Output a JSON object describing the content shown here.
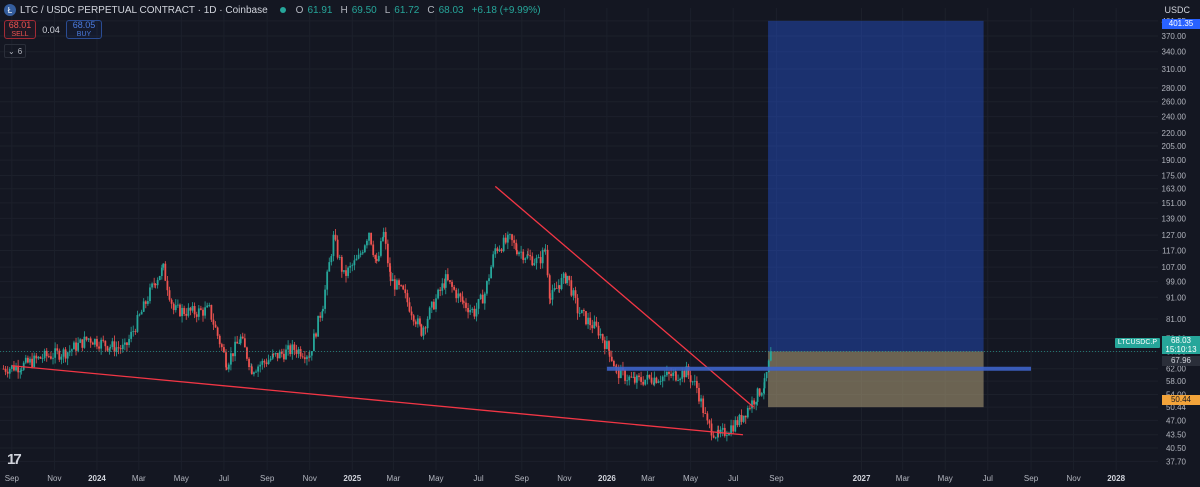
{
  "header": {
    "symbol_icon": "litecoin-icon",
    "title": "LTC / USDC PERPETUAL CONTRACT · 1D · Coinbase",
    "open_label": "O",
    "open": "61.91",
    "high_label": "H",
    "high": "69.50",
    "low_label": "L",
    "low": "61.72",
    "close_label": "C",
    "close": "68.03",
    "change": "+6.18 (+9.99%)"
  },
  "trade": {
    "sell_price": "68.01",
    "sell_label": "SELL",
    "spread": "0.04",
    "buy_price": "68.05",
    "buy_label": "BUY"
  },
  "indicators": {
    "toggle_icon": "chevron-down-icon",
    "count": "6"
  },
  "axis": {
    "currency": "USDC"
  },
  "price_tags": {
    "symbol_label": "LTCUSDC.P",
    "last_price": "68.03",
    "countdown": "15:10:13",
    "price_2": "67.96",
    "target": "401.35",
    "stop": "50.44"
  },
  "colors": {
    "background": "#141722",
    "up": "#26a69a",
    "down": "#ef5350",
    "trendline": "#f23645",
    "level": "#3d63c9",
    "target_zone": "#2962ff",
    "stop_zone": "#b3a27a"
  },
  "chart_data": {
    "type": "candlestick",
    "title": "LTC / USDC PERPETUAL CONTRACT · 1D · Coinbase",
    "y_scale": "log",
    "ylim": [
      36,
      430
    ],
    "y_ticks": [
      "37.70",
      "40.50",
      "43.50",
      "47.00",
      "50.44",
      "54.00",
      "58.00",
      "62.00",
      "67.96",
      "73.00",
      "81.00",
      "91.00",
      "99.00",
      "107.00",
      "117.00",
      "127.00",
      "139.00",
      "151.00",
      "163.00",
      "175.00",
      "190.00",
      "205.00",
      "220.00",
      "240.00",
      "260.00",
      "280.00",
      "310.00",
      "340.00",
      "370.00",
      "401.35"
    ],
    "x_ticks": [
      "Sep",
      "Nov",
      "2024",
      "Mar",
      "May",
      "Jul",
      "Sep",
      "Nov",
      "2025",
      "Mar",
      "May",
      "Jul",
      "Sep",
      "Nov",
      "2026",
      "Mar",
      "May",
      "Jul",
      "Sep",
      "2027",
      "Mar",
      "May",
      "Jul",
      "Sep",
      "Nov",
      "2028"
    ],
    "x_tick_dates": [
      "2023-09-01",
      "2023-11-01",
      "2024-01-01",
      "2024-03-01",
      "2024-05-01",
      "2024-07-01",
      "2024-09-01",
      "2024-11-01",
      "2025-01-01",
      "2025-03-01",
      "2025-05-01",
      "2025-07-01",
      "2025-09-01",
      "2025-11-01",
      "2026-01-01",
      "2026-03-01",
      "2026-05-01",
      "2026-07-01",
      "2026-09-01",
      "2027-01-01",
      "2027-03-01",
      "2027-05-01",
      "2027-07-01",
      "2027-09-01",
      "2027-11-01",
      "2028-01-01"
    ],
    "xlim": [
      "2023-08-15",
      "2028-03-01"
    ],
    "price_path": [
      [
        "2023-08-20",
        62
      ],
      [
        "2023-09-15",
        63
      ],
      [
        "2023-10-15",
        66
      ],
      [
        "2023-11-20",
        68
      ],
      [
        "2023-12-20",
        73
      ],
      [
        "2024-01-20",
        70
      ],
      [
        "2024-02-10",
        69
      ],
      [
        "2024-03-05",
        84
      ],
      [
        "2024-03-25",
        100
      ],
      [
        "2024-04-05",
        106
      ],
      [
        "2024-04-20",
        85
      ],
      [
        "2024-05-20",
        84
      ],
      [
        "2024-06-10",
        85
      ],
      [
        "2024-07-05",
        64
      ],
      [
        "2024-07-25",
        73
      ],
      [
        "2024-08-10",
        62
      ],
      [
        "2024-09-10",
        66
      ],
      [
        "2024-10-10",
        69
      ],
      [
        "2024-11-01",
        67
      ],
      [
        "2024-11-20",
        88
      ],
      [
        "2024-12-05",
        125
      ],
      [
        "2024-12-20",
        102
      ],
      [
        "2025-01-10",
        112
      ],
      [
        "2025-01-25",
        130
      ],
      [
        "2025-02-05",
        108
      ],
      [
        "2025-02-15",
        128
      ],
      [
        "2025-02-25",
        100
      ],
      [
        "2025-03-15",
        93
      ],
      [
        "2025-04-10",
        76
      ],
      [
        "2025-04-25",
        86
      ],
      [
        "2025-05-15",
        100
      ],
      [
        "2025-06-10",
        88
      ],
      [
        "2025-06-25",
        84
      ],
      [
        "2025-07-10",
        93
      ],
      [
        "2025-07-25",
        118
      ],
      [
        "2025-08-15",
        124
      ],
      [
        "2025-08-25",
        118
      ],
      [
        "2025-09-10",
        113
      ],
      [
        "2025-09-25",
        110
      ],
      [
        "2025-10-05",
        118
      ],
      [
        "2025-10-12",
        90
      ],
      [
        "2025-10-25",
        98
      ],
      [
        "2025-11-05",
        102
      ],
      [
        "2025-11-20",
        85
      ],
      [
        "2025-12-05",
        80
      ],
      [
        "2025-12-20",
        76
      ],
      [
        "2026-01-05",
        68
      ],
      [
        "2026-01-15",
        61
      ],
      [
        "2026-02-10",
        58
      ],
      [
        "2026-03-10",
        59
      ],
      [
        "2026-04-10",
        60
      ],
      [
        "2026-04-25",
        61
      ],
      [
        "2026-05-10",
        56
      ],
      [
        "2026-05-25",
        46
      ],
      [
        "2026-06-10",
        43
      ],
      [
        "2026-06-25",
        45
      ],
      [
        "2026-07-10",
        47
      ],
      [
        "2026-07-25",
        51
      ],
      [
        "2026-08-05",
        54
      ],
      [
        "2026-08-15",
        57
      ],
      [
        "2026-08-25",
        68
      ]
    ],
    "trendlines": [
      {
        "name": "",
        "from": [
          "2023-09-01",
          63
        ],
        "to": [
          "2026-07-15",
          43.5
        ]
      },
      {
        "name": "",
        "from": [
          "2025-07-25",
          165
        ],
        "to": [
          "2026-07-30",
          50.5
        ]
      }
    ],
    "horizontal_level": {
      "value": 62,
      "from": "2026-01-01",
      "to": "2027-09-01"
    },
    "long_position": {
      "entry": 68.03,
      "target": 401.35,
      "stop": 50.44,
      "from": "2026-08-20",
      "to": "2027-06-25"
    }
  }
}
